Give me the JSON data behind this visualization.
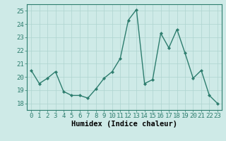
{
  "x": [
    0,
    1,
    2,
    3,
    4,
    5,
    6,
    7,
    8,
    9,
    10,
    11,
    12,
    13,
    14,
    15,
    16,
    17,
    18,
    19,
    20,
    21,
    22,
    23
  ],
  "y": [
    20.5,
    19.5,
    19.9,
    20.4,
    18.9,
    18.6,
    18.6,
    18.4,
    19.1,
    19.9,
    20.4,
    21.4,
    24.3,
    25.1,
    19.5,
    19.8,
    23.3,
    22.2,
    23.6,
    21.8,
    19.9,
    20.5,
    18.6,
    18.0
  ],
  "line_color": "#2d7d6e",
  "marker": "D",
  "marker_size": 2.2,
  "linewidth": 1.0,
  "bg_color": "#ceeae7",
  "grid_color": "#aed4d0",
  "xlabel": "Humidex (Indice chaleur)",
  "xlim": [
    -0.5,
    23.5
  ],
  "ylim": [
    17.5,
    25.5
  ],
  "yticks": [
    18,
    19,
    20,
    21,
    22,
    23,
    24,
    25
  ],
  "xticks": [
    0,
    1,
    2,
    3,
    4,
    5,
    6,
    7,
    8,
    9,
    10,
    11,
    12,
    13,
    14,
    15,
    16,
    17,
    18,
    19,
    20,
    21,
    22,
    23
  ],
  "xtick_labels": [
    "0",
    "1",
    "2",
    "3",
    "4",
    "5",
    "6",
    "7",
    "8",
    "9",
    "10",
    "11",
    "12",
    "13",
    "14",
    "15",
    "16",
    "17",
    "18",
    "19",
    "20",
    "21",
    "22",
    "23"
  ],
  "xlabel_fontsize": 7.5,
  "tick_fontsize": 6.5,
  "spine_color": "#2d7d6e"
}
